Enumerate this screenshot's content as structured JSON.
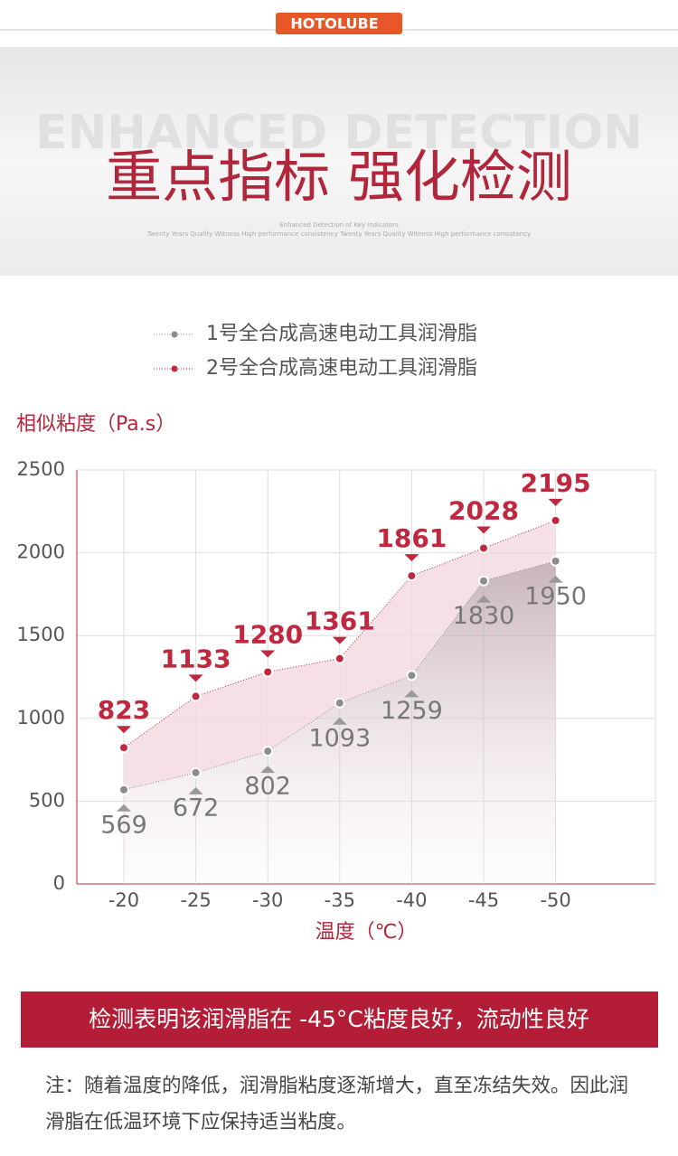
{
  "header": {
    "brand": "HOTOLUBE",
    "bg_title": "ENHANCED DETECTION",
    "title": "重点指标 强化检测",
    "sub1": "Enhanced Detection of Key Indicators",
    "sub2": "Twenty Years Quality Witness High performance consistency Twenty Years Quality Witness High performance consistency"
  },
  "chart_data": {
    "type": "line",
    "y_label": "相似粘度（Pa.s）",
    "x_label": "温度（℃）",
    "categories": [
      "-20",
      "-25",
      "-30",
      "-35",
      "-40",
      "-45",
      "-50"
    ],
    "series": [
      {
        "name": "1号全合成高速电动工具润滑脂",
        "color": "#8c8c8c",
        "values": [
          569,
          672,
          802,
          1093,
          1259,
          1830,
          1950
        ]
      },
      {
        "name": "2号全合成高速电动工具润滑脂",
        "color": "#c0283f",
        "values": [
          823,
          1133,
          1280,
          1361,
          1861,
          2028,
          2195
        ]
      }
    ],
    "ylim": [
      0,
      2500
    ],
    "yticks": [
      0,
      500,
      1000,
      1500,
      2000,
      2500
    ],
    "grid": true
  },
  "conclusion": "检测表明该润滑脂在 -45°C粘度良好，流动性良好",
  "note": "注：随着温度的降低，润滑脂粘度逐渐增大，直至冻结失效。因此润滑脂在低温环境下应保持适当粘度。"
}
